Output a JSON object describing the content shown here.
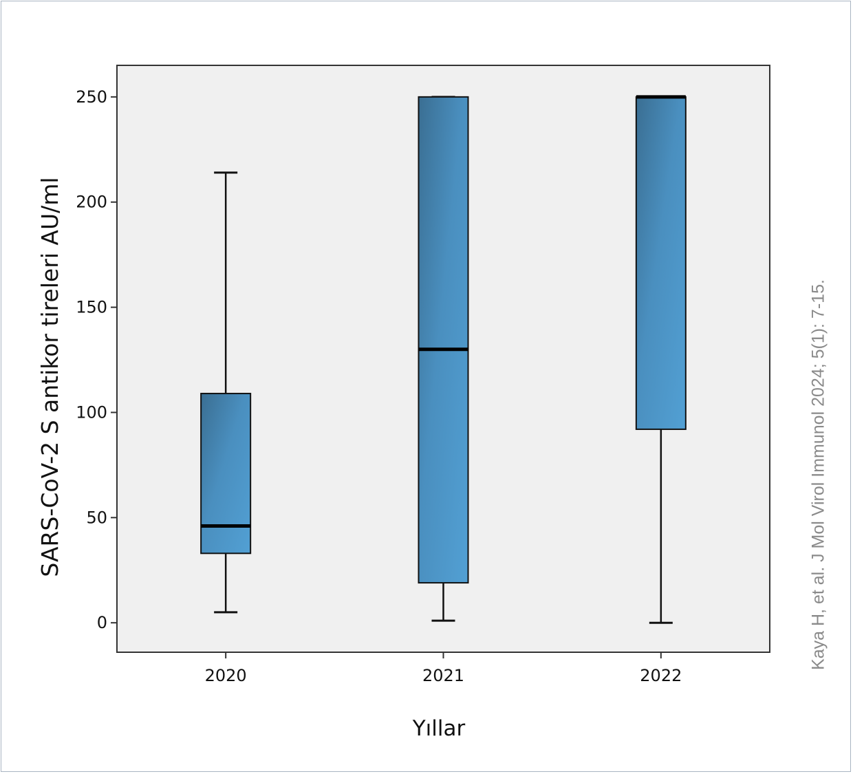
{
  "chart_data": {
    "type": "box",
    "title": "",
    "xlabel": "Yıllar",
    "ylabel": "SARS-CoV-2 S antikor tireleri AU/ml",
    "ylim": [
      -14,
      265
    ],
    "yticks": [
      "0",
      "50",
      "100",
      "150",
      "200",
      "250"
    ],
    "grid": false,
    "categories": [
      "2020",
      "2021",
      "2022"
    ],
    "boxes": [
      {
        "category": "2020",
        "min": 5,
        "q1": 33,
        "median": 46,
        "q3": 109,
        "max": 214
      },
      {
        "category": "2021",
        "min": 1,
        "q1": 19,
        "median": 130,
        "q3": 250,
        "max": 250
      },
      {
        "category": "2022",
        "min": 0,
        "q1": 92,
        "median": 250,
        "q3": 250,
        "max": 250
      }
    ],
    "colors": {
      "box_dark": "#3a6e92",
      "box_light": "#4f9bcf",
      "plot_bg": "#f0f0f0",
      "axis": "#333333"
    }
  },
  "citation": "Kaya H, et al. J Mol Virol Immunol 2024; 5(1): 7-15."
}
